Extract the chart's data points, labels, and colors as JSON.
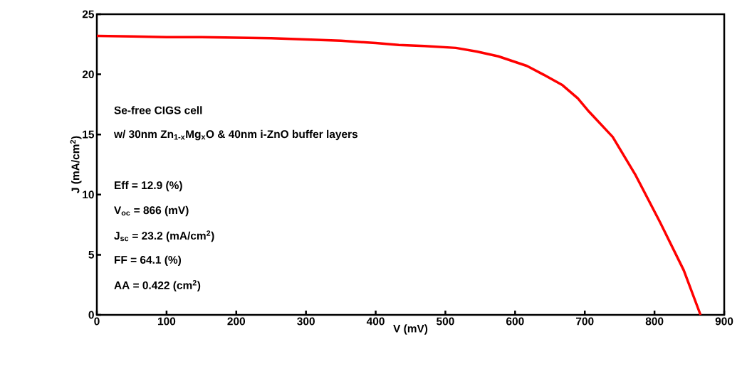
{
  "chart_data": {
    "type": "line",
    "xlabel": "V (mV)",
    "ylabel": "J (mA/cm$^{2}$)",
    "x": [
      0,
      50,
      100,
      150,
      200,
      250,
      300,
      350,
      400,
      433,
      470,
      515,
      545,
      576,
      617,
      640,
      668,
      690,
      706,
      740,
      773,
      808,
      842,
      866
    ],
    "series": [
      {
        "color": "#ff0000",
        "values": [
          23.2,
          23.15,
          23.1,
          23.1,
          23.05,
          23.0,
          22.9,
          22.8,
          22.6,
          22.45,
          22.35,
          22.2,
          21.9,
          21.5,
          20.7,
          20.0,
          19.1,
          18.0,
          16.9,
          14.8,
          11.6,
          7.7,
          3.7,
          0
        ]
      }
    ],
    "xlim": [
      0,
      900
    ],
    "ylim": [
      0,
      25
    ],
    "xticks": [
      0,
      100,
      200,
      300,
      400,
      500,
      600,
      700,
      800,
      900
    ],
    "yticks": [
      0,
      5,
      10,
      15,
      20,
      25
    ],
    "marker": "none",
    "annotations": [
      "Se-free CIGS cell",
      "w/ 30nm Zn$_{1-x}$Mg$_{x}$O & 40nm i-ZnO buffer layers",
      "Eff = 12.9 (%)",
      "V$_{oc}$ = 866 (mV)",
      "J$_{sc}$ = 23.2 (mA/cm$^{2}$)",
      "FF = 64.1 (%)",
      "AA = 0.422 (cm$^{2}$)"
    ]
  }
}
